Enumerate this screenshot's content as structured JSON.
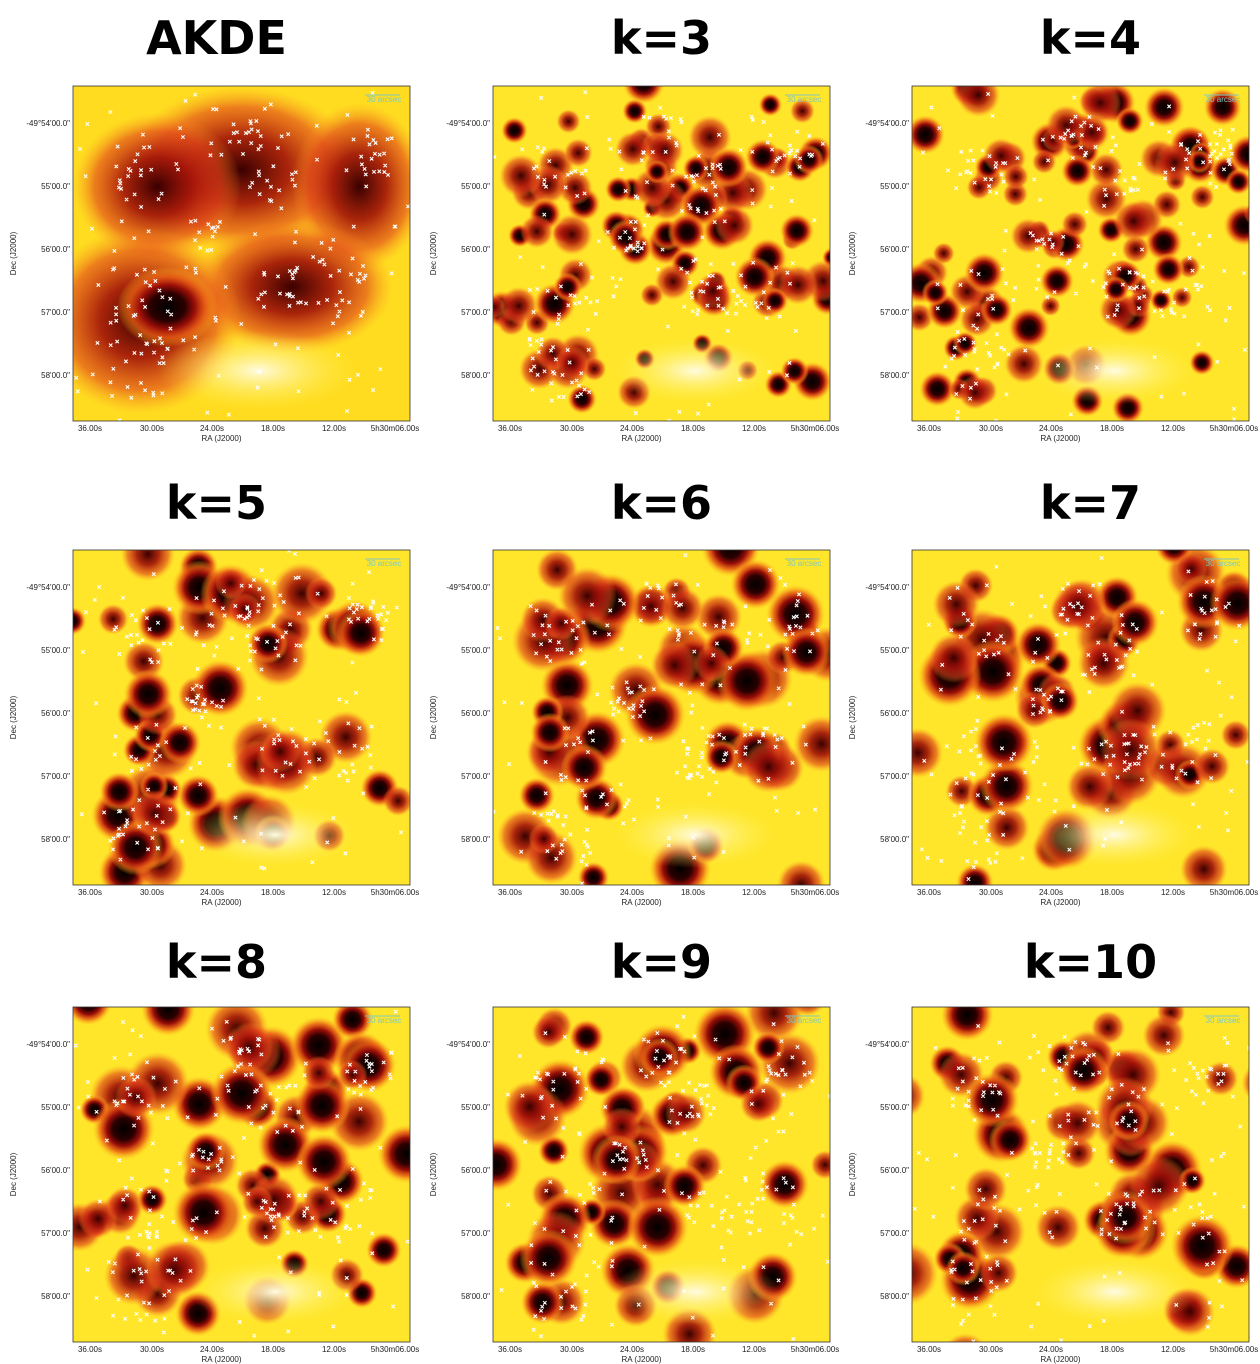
{
  "panels": [
    {
      "title": "AKDE"
    },
    {
      "title": "k=3"
    },
    {
      "title": "k=4"
    },
    {
      "title": "k=5"
    },
    {
      "title": "k=6"
    },
    {
      "title": "k=7"
    },
    {
      "title": "k=8"
    },
    {
      "title": "k=9"
    },
    {
      "title": "k=10"
    }
  ],
  "x_axis": {
    "label": "RA (J2000)",
    "ticks": [
      "36.00s",
      "30.00s",
      "24.00s",
      "18.00s",
      "12.00s",
      "5h30m06.00s"
    ]
  },
  "y_axis": {
    "label": "Dec (J2000)",
    "ticks": [
      "-49°54'00.0\"",
      "55'00.0\"",
      "56'00.0\"",
      "57'00.0\"",
      "58'00.0\""
    ]
  },
  "scale_bar": "30 arcsec"
}
